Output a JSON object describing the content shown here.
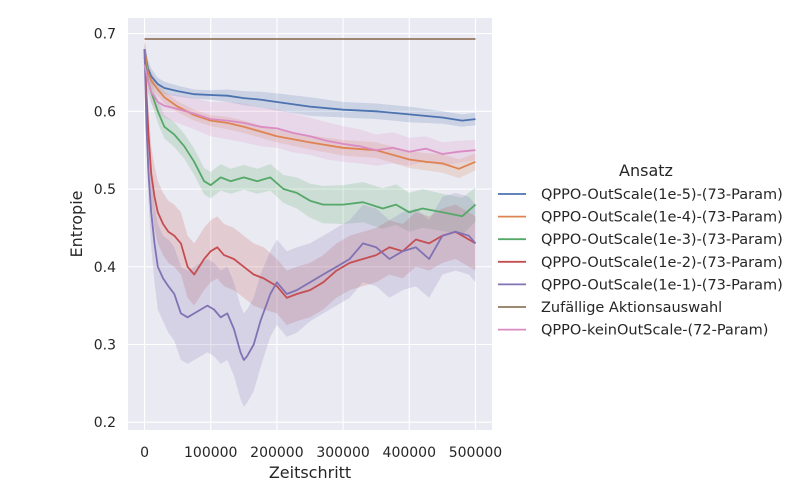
{
  "chart_data": {
    "type": "line",
    "title": "",
    "xlabel": "Zeitschritt",
    "ylabel": "Entropie",
    "xlim": [
      -25000,
      525000
    ],
    "ylim": [
      0.19,
      0.72
    ],
    "x_ticks": [
      0,
      100000,
      200000,
      300000,
      400000,
      500000
    ],
    "x_tick_labels": [
      "0",
      "100000",
      "200000",
      "300000",
      "400000",
      "500000"
    ],
    "y_ticks": [
      0.2,
      0.3,
      0.4,
      0.5,
      0.6,
      0.7
    ],
    "y_tick_labels": [
      "0.2",
      "0.3",
      "0.4",
      "0.5",
      "0.6",
      "0.7"
    ],
    "grid": true,
    "legend_title": "Ansatz",
    "legend_position": "right",
    "series": [
      {
        "name": "QPPO-OutScale(1e-5)-(73-Param)",
        "color": "#4c72b0",
        "x": [
          0,
          5000,
          10000,
          20000,
          30000,
          50000,
          75000,
          100000,
          125000,
          150000,
          175000,
          200000,
          250000,
          300000,
          350000,
          400000,
          450000,
          480000,
          500000
        ],
        "y": [
          0.68,
          0.655,
          0.645,
          0.635,
          0.63,
          0.626,
          0.622,
          0.621,
          0.62,
          0.617,
          0.615,
          0.612,
          0.606,
          0.602,
          0.6,
          0.596,
          0.592,
          0.588,
          0.59
        ],
        "band": [
          0.012,
          0.012,
          0.01,
          0.008,
          0.008,
          0.007,
          0.006,
          0.006,
          0.008,
          0.009,
          0.01,
          0.011,
          0.012,
          0.01,
          0.01,
          0.01,
          0.008,
          0.008,
          0.008
        ]
      },
      {
        "name": "QPPO-OutScale(1e-4)-(73-Param)",
        "color": "#dd8452",
        "x": [
          0,
          5000,
          10000,
          20000,
          30000,
          50000,
          75000,
          100000,
          125000,
          150000,
          175000,
          200000,
          250000,
          300000,
          350000,
          400000,
          425000,
          450000,
          475000,
          500000
        ],
        "y": [
          0.68,
          0.65,
          0.64,
          0.628,
          0.618,
          0.606,
          0.595,
          0.588,
          0.585,
          0.58,
          0.574,
          0.568,
          0.56,
          0.553,
          0.55,
          0.538,
          0.535,
          0.533,
          0.526,
          0.535
        ],
        "band": [
          0.012,
          0.012,
          0.01,
          0.008,
          0.008,
          0.007,
          0.007,
          0.007,
          0.008,
          0.008,
          0.008,
          0.008,
          0.009,
          0.01,
          0.01,
          0.011,
          0.011,
          0.012,
          0.012,
          0.011
        ]
      },
      {
        "name": "QPPO-OutScale(1e-3)-(73-Param)",
        "color": "#55a868",
        "x": [
          0,
          5000,
          10000,
          20000,
          30000,
          45000,
          60000,
          75000,
          90000,
          100000,
          115000,
          130000,
          150000,
          170000,
          190000,
          210000,
          230000,
          250000,
          270000,
          300000,
          330000,
          360000,
          380000,
          400000,
          420000,
          450000,
          480000,
          500000
        ],
        "y": [
          0.67,
          0.64,
          0.625,
          0.6,
          0.58,
          0.57,
          0.555,
          0.535,
          0.51,
          0.505,
          0.515,
          0.51,
          0.515,
          0.51,
          0.515,
          0.5,
          0.495,
          0.485,
          0.48,
          0.48,
          0.483,
          0.475,
          0.48,
          0.47,
          0.475,
          0.47,
          0.465,
          0.48
        ],
        "band": [
          0.012,
          0.014,
          0.014,
          0.015,
          0.015,
          0.016,
          0.016,
          0.017,
          0.017,
          0.017,
          0.017,
          0.016,
          0.016,
          0.016,
          0.017,
          0.018,
          0.02,
          0.022,
          0.024,
          0.025,
          0.026,
          0.026,
          0.026,
          0.025,
          0.025,
          0.024,
          0.024,
          0.022
        ]
      },
      {
        "name": "QPPO-OutScale(1e-2)-(73-Param)",
        "color": "#c44e52",
        "x": [
          0,
          3000,
          6000,
          10000,
          15000,
          20000,
          28000,
          36000,
          45000,
          55000,
          65000,
          75000,
          90000,
          100000,
          110000,
          120000,
          135000,
          150000,
          165000,
          180000,
          200000,
          215000,
          230000,
          250000,
          270000,
          290000,
          310000,
          330000,
          350000,
          370000,
          390000,
          410000,
          430000,
          450000,
          470000,
          490000,
          500000
        ],
        "y": [
          0.68,
          0.62,
          0.57,
          0.52,
          0.49,
          0.47,
          0.455,
          0.445,
          0.44,
          0.43,
          0.4,
          0.39,
          0.41,
          0.42,
          0.425,
          0.415,
          0.41,
          0.4,
          0.39,
          0.385,
          0.375,
          0.36,
          0.365,
          0.37,
          0.38,
          0.395,
          0.405,
          0.41,
          0.415,
          0.425,
          0.42,
          0.435,
          0.43,
          0.44,
          0.445,
          0.435,
          0.43
        ],
        "band": [
          0.012,
          0.02,
          0.03,
          0.035,
          0.04,
          0.04,
          0.04,
          0.04,
          0.04,
          0.04,
          0.04,
          0.04,
          0.04,
          0.04,
          0.04,
          0.04,
          0.04,
          0.04,
          0.04,
          0.04,
          0.035,
          0.035,
          0.035,
          0.035,
          0.035,
          0.035,
          0.035,
          0.035,
          0.035,
          0.035,
          0.035,
          0.035,
          0.035,
          0.035,
          0.035,
          0.035,
          0.035
        ]
      },
      {
        "name": "QPPO-OutScale(1e-1)-(73-Param)",
        "color": "#8172b3",
        "x": [
          0,
          3000,
          6000,
          10000,
          15000,
          20000,
          28000,
          36000,
          45000,
          55000,
          65000,
          75000,
          85000,
          95000,
          105000,
          115000,
          125000,
          135000,
          145000,
          150000,
          155000,
          165000,
          175000,
          190000,
          200000,
          215000,
          230000,
          250000,
          270000,
          290000,
          310000,
          330000,
          350000,
          370000,
          390000,
          410000,
          430000,
          450000,
          470000,
          490000,
          500000
        ],
        "y": [
          0.68,
          0.58,
          0.52,
          0.47,
          0.43,
          0.4,
          0.385,
          0.375,
          0.365,
          0.34,
          0.335,
          0.34,
          0.345,
          0.35,
          0.345,
          0.335,
          0.34,
          0.32,
          0.29,
          0.28,
          0.285,
          0.3,
          0.33,
          0.365,
          0.38,
          0.365,
          0.37,
          0.38,
          0.39,
          0.4,
          0.41,
          0.43,
          0.425,
          0.41,
          0.42,
          0.425,
          0.41,
          0.44,
          0.445,
          0.44,
          0.43
        ],
        "band": [
          0.012,
          0.025,
          0.035,
          0.045,
          0.05,
          0.055,
          0.055,
          0.06,
          0.06,
          0.06,
          0.06,
          0.06,
          0.06,
          0.06,
          0.06,
          0.06,
          0.06,
          0.06,
          0.06,
          0.06,
          0.06,
          0.06,
          0.06,
          0.055,
          0.055,
          0.055,
          0.055,
          0.05,
          0.05,
          0.05,
          0.05,
          0.05,
          0.05,
          0.05,
          0.05,
          0.05,
          0.05,
          0.05,
          0.05,
          0.05,
          0.05
        ]
      },
      {
        "name": "Zufällige Aktionsauswahl",
        "color": "#937860",
        "x": [
          0,
          500000
        ],
        "y": [
          0.693,
          0.693
        ],
        "band": [
          0,
          0
        ]
      },
      {
        "name": "QPPO-keinOutScale-(72-Param)",
        "color": "#da8bc3",
        "x": [
          0,
          5000,
          10000,
          20000,
          30000,
          50000,
          75000,
          100000,
          125000,
          150000,
          175000,
          200000,
          225000,
          250000,
          275000,
          300000,
          325000,
          350000,
          375000,
          400000,
          425000,
          450000,
          475000,
          500000
        ],
        "y": [
          0.66,
          0.64,
          0.625,
          0.612,
          0.607,
          0.603,
          0.597,
          0.59,
          0.588,
          0.585,
          0.58,
          0.578,
          0.572,
          0.568,
          0.562,
          0.558,
          0.555,
          0.55,
          0.553,
          0.548,
          0.552,
          0.545,
          0.548,
          0.55
        ],
        "band": [
          0.012,
          0.015,
          0.015,
          0.015,
          0.016,
          0.018,
          0.02,
          0.022,
          0.024,
          0.025,
          0.025,
          0.025,
          0.025,
          0.024,
          0.024,
          0.023,
          0.022,
          0.02,
          0.02,
          0.018,
          0.016,
          0.015,
          0.014,
          0.013
        ]
      }
    ]
  }
}
